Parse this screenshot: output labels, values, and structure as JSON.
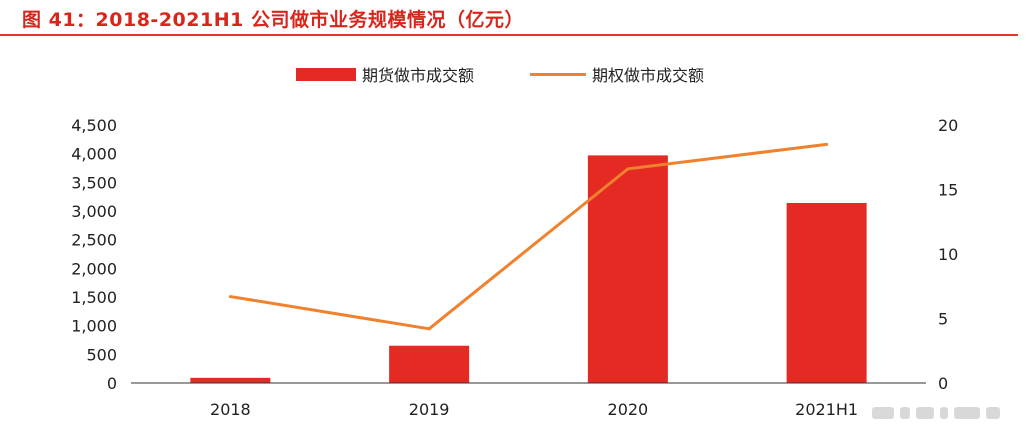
{
  "title": "图 41：2018-2021H1 公司做市业务规模情况（亿元）",
  "colors": {
    "title": "#d9261c",
    "bar": "#e42a22",
    "line": "#f0812f"
  },
  "legend": {
    "futures_label": "期货做市成交额",
    "options_label": "期权做市成交额"
  },
  "chart_data": {
    "type": "bar",
    "categories": [
      "2018",
      "2019",
      "2020",
      "2021H1"
    ],
    "series": [
      {
        "name": "期货做市成交额",
        "type": "bar",
        "axis": "left",
        "values": [
          90,
          650,
          3970,
          3140
        ]
      },
      {
        "name": "期权做市成交额",
        "type": "line",
        "axis": "right",
        "values": [
          6.7,
          4.2,
          16.6,
          18.5
        ]
      }
    ],
    "y_left": {
      "min": 0,
      "max": 4500,
      "tick_labels": [
        "0",
        "500",
        "1,000",
        "1,500",
        "2,000",
        "2,500",
        "3,000",
        "3,500",
        "4,000",
        "4,500"
      ]
    },
    "y_right": {
      "min": 0,
      "max": 20,
      "tick_labels": [
        "0",
        "5",
        "10",
        "15",
        "20"
      ]
    },
    "grid": false,
    "legend_position": "top"
  }
}
